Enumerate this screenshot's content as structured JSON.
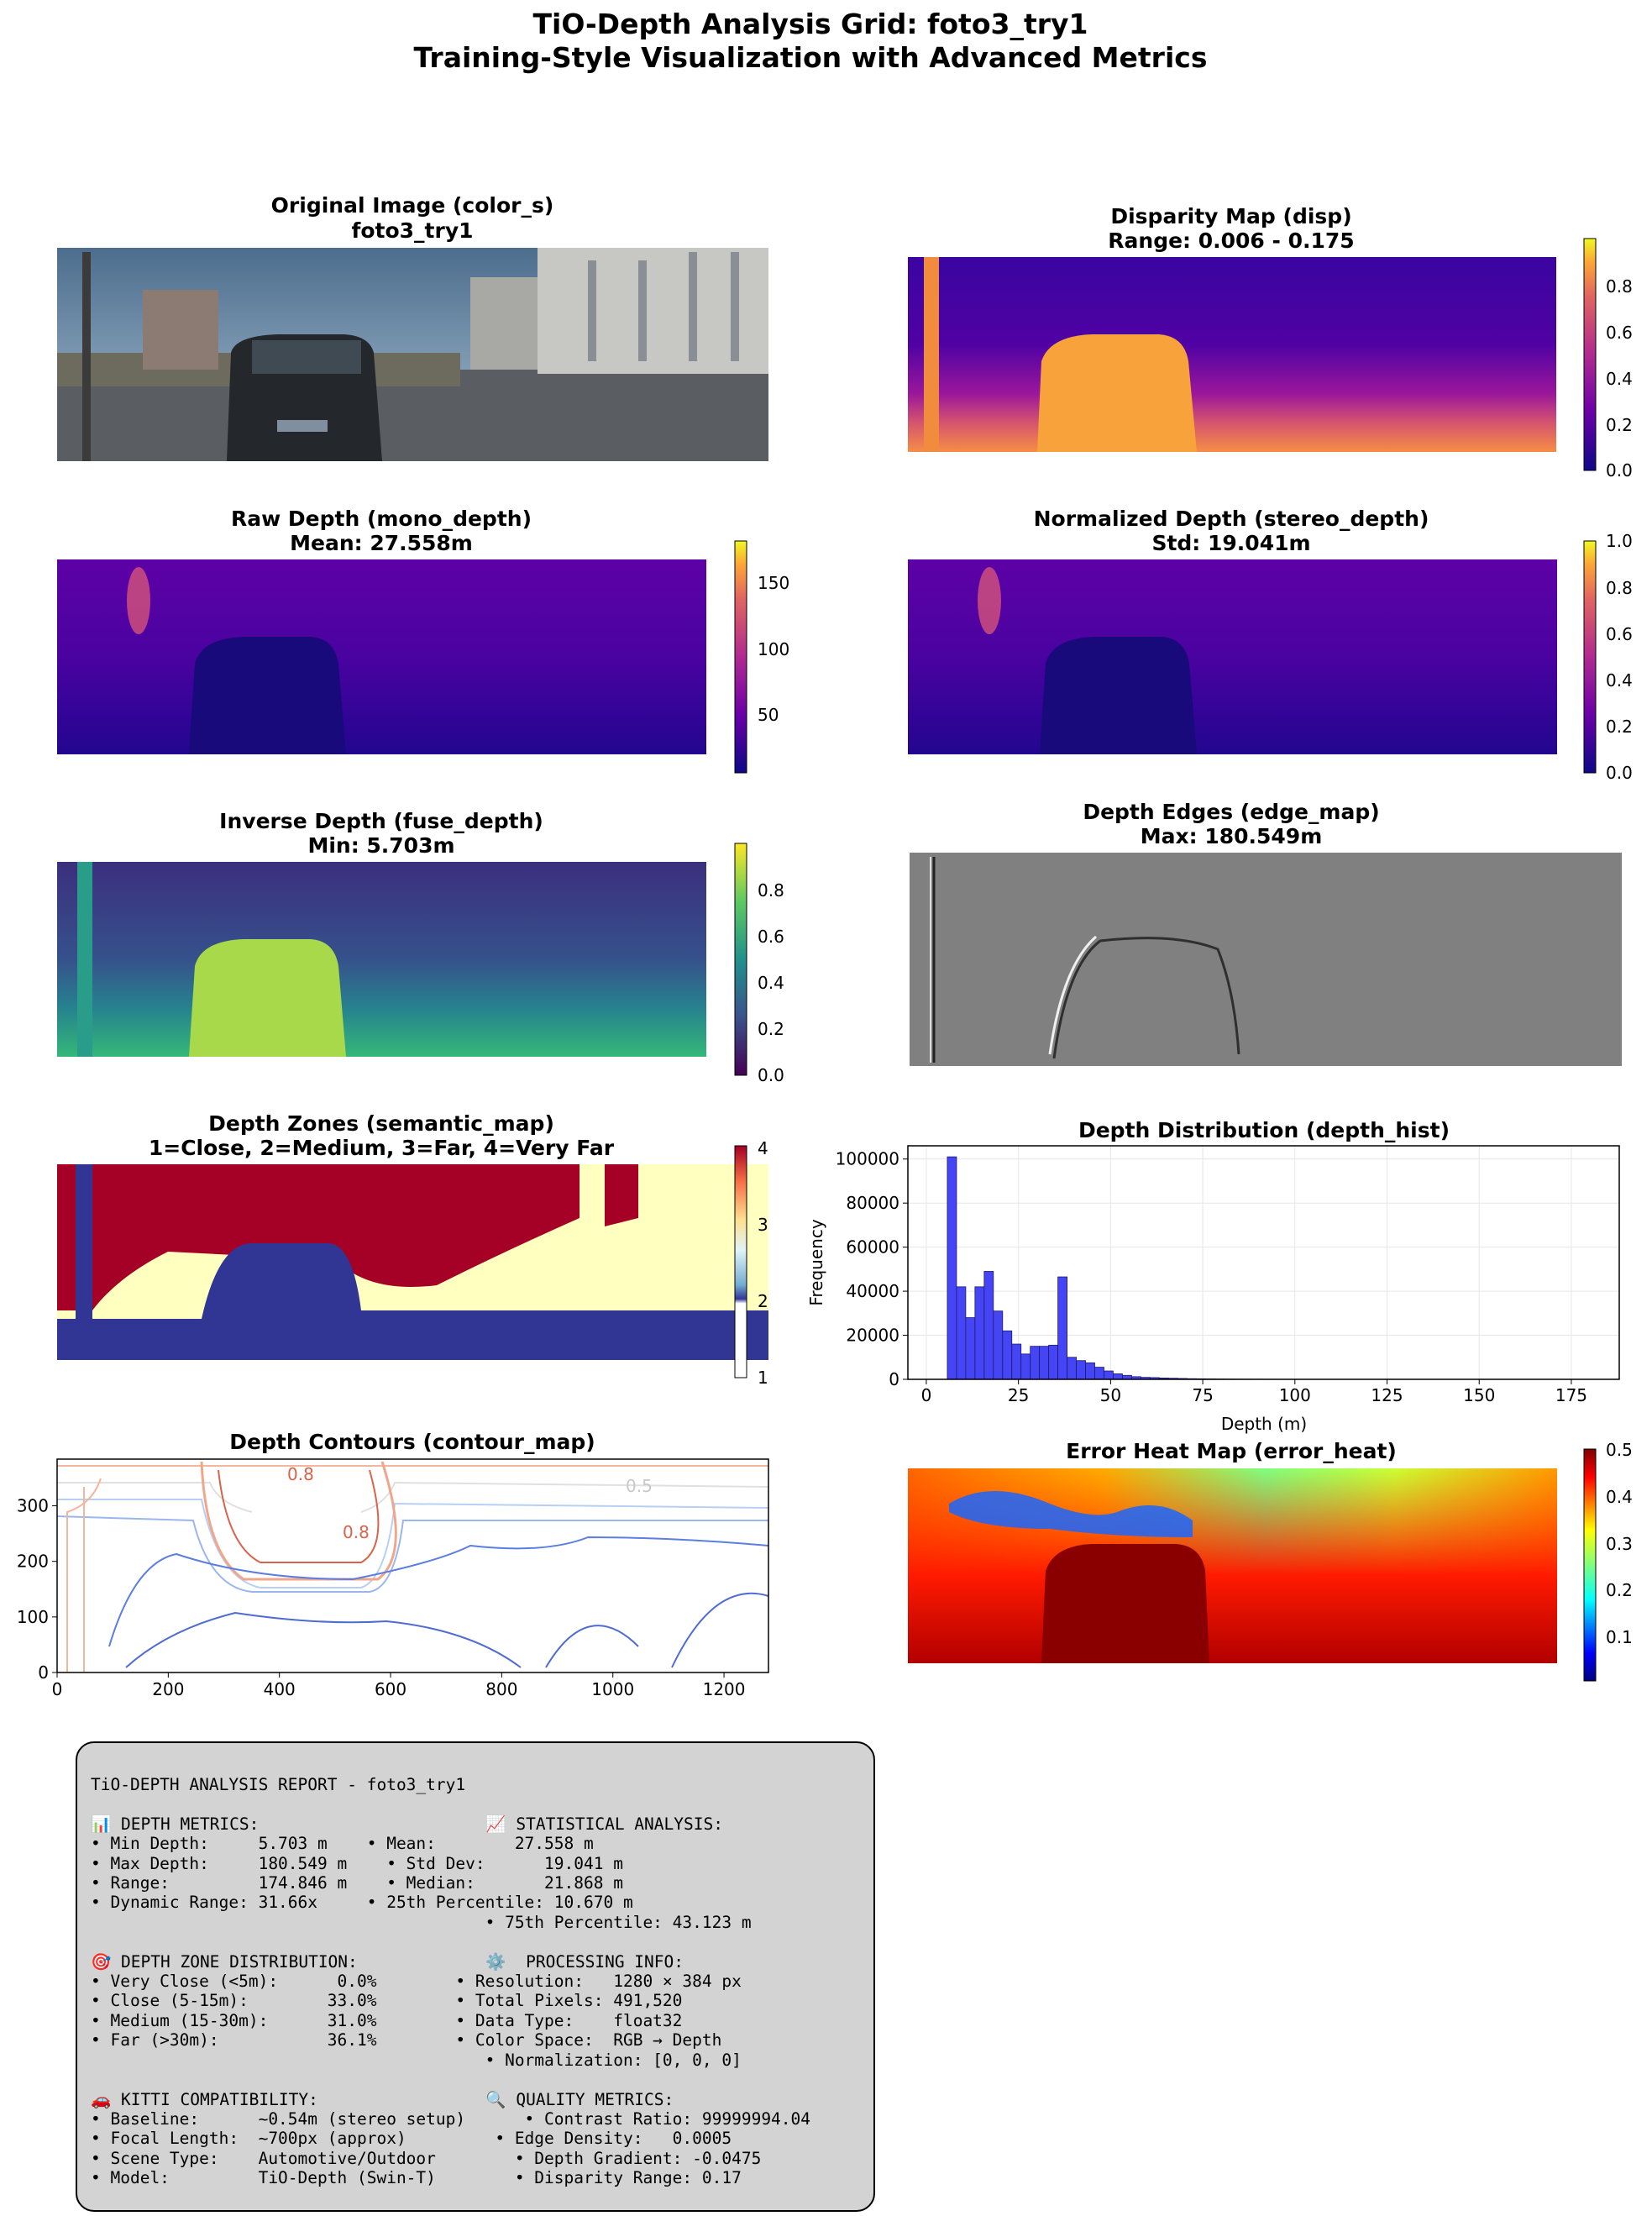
{
  "figure": {
    "title_line1": "TiO-Depth Analysis Grid: foto3_try1",
    "title_line2": "Training-Style Visualization with Advanced Metrics"
  },
  "colors": {
    "hist_bar": "#4545f5",
    "grid": "#e6e6e6",
    "report_bg": "#d3d3d3"
  },
  "panels": {
    "original": {
      "title1": "Original Image (color_s)",
      "title2": "foto3_try1"
    },
    "disparity": {
      "title1": "Disparity Map (disp)",
      "title2": "Range: 0.006 - 0.175",
      "colormap": "plasma",
      "colorbar_ticks": [
        "0.0",
        "0.2",
        "0.4",
        "0.6",
        "0.8"
      ]
    },
    "raw_depth": {
      "title1": "Raw Depth (mono_depth)",
      "title2": "Mean: 27.558m",
      "colormap": "plasma",
      "colorbar_ticks": [
        "50",
        "100",
        "150"
      ]
    },
    "norm_depth": {
      "title1": "Normalized Depth (stereo_depth)",
      "title2": "Std: 19.041m",
      "colormap": "plasma",
      "colorbar_ticks": [
        "0.0",
        "0.2",
        "0.4",
        "0.6",
        "0.8",
        "1.0"
      ]
    },
    "inverse_depth": {
      "title1": "Inverse Depth (fuse_depth)",
      "title2": "Min: 5.703m",
      "colormap": "viridis",
      "colorbar_ticks": [
        "0.0",
        "0.2",
        "0.4",
        "0.6",
        "0.8"
      ]
    },
    "edges": {
      "title1": "Depth Edges (edge_map)",
      "title2": "Max: 180.549m",
      "colormap": "gray"
    },
    "zones": {
      "title1": "Depth Zones (semantic_map)",
      "title2": "1=Close, 2=Medium, 3=Far, 4=Very Far",
      "colormap": "RdYlBu",
      "colorbar_ticks": [
        "1",
        "2",
        "3",
        "4"
      ]
    },
    "histogram": {
      "title1": "Depth Distribution (depth_hist)"
    },
    "contours": {
      "title1": "Depth Contours (contour_map)",
      "contour_labels": [
        "0.8",
        "0.5",
        "0.8"
      ]
    },
    "error_heat": {
      "title1": "Error Heat Map (error_heat)",
      "colormap": "jet",
      "colorbar_ticks": [
        "0.1",
        "0.2",
        "0.3",
        "0.4",
        "0.5"
      ]
    }
  },
  "chart_data": [
    {
      "type": "bar",
      "title": "Depth Distribution (depth_hist)",
      "xlabel": "Depth (m)",
      "ylabel": "Frequency",
      "xlim": [
        -5,
        188
      ],
      "ylim": [
        0,
        106000
      ],
      "xticks": [
        0,
        25,
        50,
        75,
        100,
        125,
        150,
        175
      ],
      "yticks": [
        0,
        20000,
        40000,
        60000,
        80000,
        100000
      ],
      "grid": true,
      "bin_start": 5.7,
      "bin_width": 2.5,
      "values": [
        101000,
        42000,
        28000,
        42000,
        49000,
        31000,
        22000,
        16000,
        11500,
        15000,
        15000,
        15500,
        46500,
        10000,
        8500,
        7500,
        5500,
        3800,
        2500,
        1800,
        1200,
        900,
        800,
        600,
        500,
        400,
        300,
        250,
        200,
        150,
        120,
        100,
        80,
        60,
        50,
        40,
        35,
        30,
        25,
        20,
        18,
        15,
        12,
        10,
        8,
        6,
        5,
        4,
        3,
        3,
        2,
        2,
        2,
        1,
        1,
        1,
        1,
        1,
        1,
        1,
        1,
        1,
        1,
        1,
        1,
        1,
        1,
        1,
        1,
        1
      ]
    },
    {
      "type": "line",
      "title": "Depth Contours (contour_map)",
      "xlim": [
        0,
        1280
      ],
      "ylim": [
        0,
        384
      ],
      "xticks": [
        0,
        200,
        400,
        600,
        800,
        1000,
        1200
      ],
      "yticks": [
        0,
        100,
        200,
        300
      ]
    }
  ],
  "report": {
    "title": "TiO-DEPTH ANALYSIS REPORT - foto3_try1",
    "lines": [
      "📊 DEPTH METRICS:                       📈 STATISTICAL ANALYSIS:",
      "• Min Depth:     5.703 m    • Mean:        27.558 m",
      "• Max Depth:     180.549 m    • Std Dev:      19.041 m",
      "• Range:         174.846 m    • Median:       21.868 m",
      "• Dynamic Range: 31.66x     • 25th Percentile: 10.670 m",
      "                                        • 75th Percentile: 43.123 m",
      "",
      "🎯 DEPTH ZONE DISTRIBUTION:             ⚙️  PROCESSING INFO:",
      "• Very Close (<5m):      0.0%        • Resolution:   1280 × 384 px",
      "• Close (5-15m):        33.0%        • Total Pixels: 491,520",
      "• Medium (15-30m):      31.0%        • Data Type:    float32",
      "• Far (>30m):           36.1%        • Color Space:  RGB → Depth",
      "                                        • Normalization: [0, 0, 0]",
      "",
      "🚗 KITTI COMPATIBILITY:                 🔍 QUALITY METRICS:",
      "• Baseline:      ~0.54m (stereo setup)      • Contrast Ratio: 99999994.04",
      "• Focal Length:  ~700px (approx)         • Edge Density:   0.0005",
      "• Scene Type:    Automotive/Outdoor        • Depth Gradient: -0.0475",
      "• Model:         TiO-Depth (Swin-T)        • Disparity Range: 0.17"
    ]
  }
}
